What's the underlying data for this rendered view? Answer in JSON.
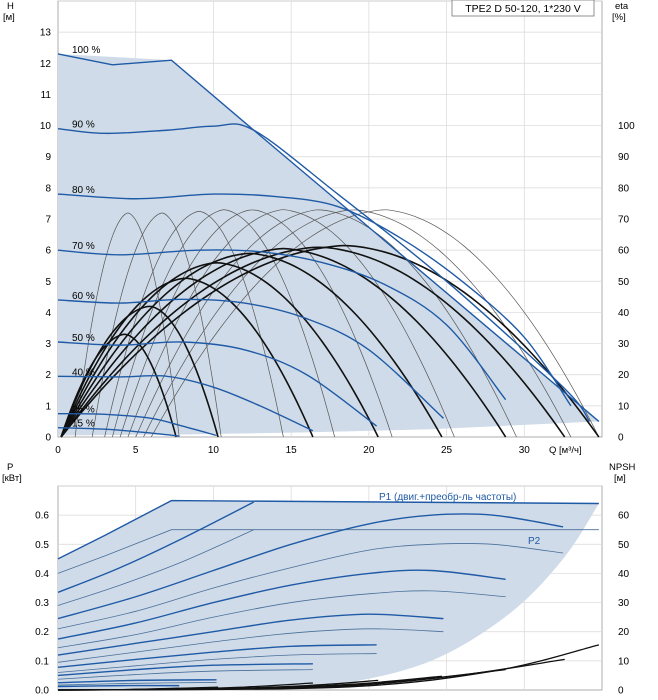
{
  "chart_data": [
    {
      "type": "line",
      "title": "TPE2 D 50-120, 1*230 V",
      "xlabel": "Q [м³/ч]",
      "ylabel": "H",
      "ylabel_unit": "[м]",
      "y2label": "eta",
      "y2label_unit": "[%]",
      "xlim": [
        0,
        35
      ],
      "ylim": [
        0,
        14
      ],
      "y2lim": [
        0,
        140
      ],
      "x_ticks": [
        0,
        5,
        10,
        15,
        20,
        25,
        30
      ],
      "y_ticks": [
        0,
        1,
        2,
        3,
        4,
        5,
        6,
        7,
        8,
        9,
        10,
        11,
        12,
        13
      ],
      "y2_ticks": [
        0,
        10,
        20,
        30,
        40,
        50,
        60,
        70,
        80,
        90,
        100
      ],
      "grid": true,
      "envelope": {
        "top": [
          [
            0,
            12.3
          ],
          [
            7.3,
            12.1
          ],
          [
            12.6,
            9.85
          ],
          [
            34.8,
            0.5
          ]
        ],
        "bottom": [
          [
            0,
            0.05
          ],
          [
            8,
            0.08
          ],
          [
            16,
            0.15
          ],
          [
            24,
            0.25
          ],
          [
            34.8,
            0.5
          ]
        ]
      },
      "head_curves": [
        {
          "label": "100 %",
          "points": [
            [
              0,
              12.3
            ],
            [
              3.5,
              11.95
            ],
            [
              7.3,
              12.1
            ],
            [
              12.6,
              9.85
            ],
            [
              34.8,
              0.5
            ]
          ]
        },
        {
          "label": "90 %",
          "points": [
            [
              0,
              9.9
            ],
            [
              3,
              9.75
            ],
            [
              7,
              9.85
            ],
            [
              10,
              9.98
            ],
            [
              12.6,
              9.85
            ],
            [
              18,
              7.8
            ],
            [
              25,
              5.0
            ],
            [
              32.5,
              1.6
            ],
            [
              34.2,
              0.5
            ]
          ]
        },
        {
          "label": "80 %",
          "points": [
            [
              0,
              7.8
            ],
            [
              5,
              7.65
            ],
            [
              10,
              7.8
            ],
            [
              14,
              7.72
            ],
            [
              18,
              7.4
            ],
            [
              22,
              6.4
            ],
            [
              26,
              5.0
            ],
            [
              30,
              3.2
            ],
            [
              33,
              1.0
            ]
          ]
        },
        {
          "label": "70 %",
          "points": [
            [
              0,
              6.0
            ],
            [
              4,
              5.85
            ],
            [
              9,
              6.0
            ],
            [
              13,
              5.95
            ],
            [
              17,
              5.6
            ],
            [
              21,
              4.9
            ],
            [
              25,
              3.6
            ],
            [
              28.8,
              1.2
            ]
          ]
        },
        {
          "label": "60 %",
          "points": [
            [
              0,
              4.4
            ],
            [
              4,
              4.3
            ],
            [
              8,
              4.42
            ],
            [
              12,
              4.3
            ],
            [
              16,
              3.8
            ],
            [
              20,
              2.8
            ],
            [
              24.8,
              0.6
            ]
          ]
        },
        {
          "label": "50 %",
          "points": [
            [
              0,
              3.05
            ],
            [
              4,
              2.95
            ],
            [
              8,
              3.05
            ],
            [
              12,
              2.8
            ],
            [
              16,
              2.0
            ],
            [
              20.5,
              0.35
            ]
          ]
        },
        {
          "label": "40 %",
          "points": [
            [
              0,
              1.95
            ],
            [
              4,
              1.93
            ],
            [
              7,
              1.95
            ],
            [
              10,
              1.6
            ],
            [
              13,
              1.0
            ],
            [
              16.4,
              0.2
            ]
          ]
        },
        {
          "label": "25 %",
          "points": [
            [
              0,
              0.75
            ],
            [
              3,
              0.73
            ],
            [
              6,
              0.6
            ],
            [
              8,
              0.35
            ],
            [
              10.2,
              0.05
            ]
          ]
        },
        {
          "label": "15 %",
          "points": [
            [
              0,
              0.3
            ],
            [
              3,
              0.25
            ],
            [
              5.5,
              0.15
            ],
            [
              7.8,
              0.03
            ]
          ]
        }
      ],
      "efficiency_curves_thin": [
        {
          "x_start": 1.1,
          "x_peak": 4.5,
          "x_end": 7.8,
          "eta_peak": 72
        },
        {
          "x_start": 2.2,
          "x_peak": 6.7,
          "x_end": 10.5,
          "eta_peak": 72
        },
        {
          "x_start": 3.0,
          "x_peak": 9.1,
          "x_end": 14.5,
          "eta_peak": 72.5
        },
        {
          "x_start": 3.5,
          "x_peak": 10.7,
          "x_end": 17.8,
          "eta_peak": 73
        },
        {
          "x_start": 4.0,
          "x_peak": 12.5,
          "x_end": 21.5,
          "eta_peak": 73
        },
        {
          "x_start": 4.5,
          "x_peak": 14.5,
          "x_end": 25.5,
          "eta_peak": 73
        },
        {
          "x_start": 5.0,
          "x_peak": 16.8,
          "x_end": 29.5,
          "eta_peak": 73
        },
        {
          "x_start": 5.5,
          "x_peak": 19.0,
          "x_end": 33.0,
          "eta_peak": 73
        },
        {
          "x_start": 6.0,
          "x_peak": 21.0,
          "x_end": 34.8,
          "eta_peak": 73
        }
      ],
      "efficiency_curves_bold": [
        {
          "x_start": 0.2,
          "x_peak": 4.3,
          "x_end": 7.6,
          "eta_peak": 33
        },
        {
          "x_start": 0.2,
          "x_peak": 5.9,
          "x_end": 10.3,
          "eta_peak": 42
        },
        {
          "x_start": 0.2,
          "x_peak": 8.2,
          "x_end": 16.4,
          "eta_peak": 51
        },
        {
          "x_start": 0.2,
          "x_peak": 10.2,
          "x_end": 20.6,
          "eta_peak": 56
        },
        {
          "x_start": 0.2,
          "x_peak": 12.3,
          "x_end": 24.7,
          "eta_peak": 59
        },
        {
          "x_start": 0.2,
          "x_peak": 14.5,
          "x_end": 28.8,
          "eta_peak": 60.5
        },
        {
          "x_start": 0.2,
          "x_peak": 16.8,
          "x_end": 32.6,
          "eta_peak": 61
        },
        {
          "x_start": 0.2,
          "x_peak": 18.5,
          "x_end": 34.8,
          "eta_peak": 61.5
        }
      ]
    },
    {
      "type": "line",
      "xlabel": "",
      "ylabel": "P",
      "ylabel_unit": "[кВт]",
      "y2label": "NPSH",
      "y2label_unit": "[м]",
      "xlim": [
        0,
        35
      ],
      "ylim": [
        0,
        0.7
      ],
      "y2lim": [
        0,
        70
      ],
      "y_ticks": [
        0.0,
        0.1,
        0.2,
        0.3,
        0.4,
        0.5,
        0.6
      ],
      "y_tick_labels": [
        "0.0",
        "0.1",
        "0.2",
        "0.3",
        "0.4",
        "0.5",
        "0.6"
      ],
      "y2_ticks": [
        0,
        10,
        20,
        30,
        40,
        50,
        60
      ],
      "grid": true,
      "annotations": [
        {
          "text": "P1 (двиг.+преобр-ль частоты)",
          "x": 22.5,
          "y": 0.66
        },
        {
          "text": "P2",
          "x": 33.0,
          "y": 0.525
        }
      ],
      "envelope": {
        "top": [
          [
            0,
            0.45
          ],
          [
            3,
            0.53
          ],
          [
            7.3,
            0.65
          ],
          [
            34.8,
            0.64
          ]
        ],
        "bottom": [
          [
            0,
            0.0
          ],
          [
            12,
            0.0
          ],
          [
            18,
            0.02
          ],
          [
            24,
            0.1
          ],
          [
            29,
            0.26
          ],
          [
            32.5,
            0.45
          ],
          [
            34.8,
            0.64
          ]
        ]
      },
      "p1_curves": [
        {
          "label": "P1",
          "points": [
            [
              0,
              0.45
            ],
            [
              3,
              0.53
            ],
            [
              7.3,
              0.65
            ],
            [
              34.8,
              0.64
            ]
          ]
        },
        {
          "points": [
            [
              0,
              0.335
            ],
            [
              4,
              0.42
            ],
            [
              8,
              0.52
            ],
            [
              12.6,
              0.645
            ]
          ]
        },
        {
          "points": [
            [
              0,
              0.245
            ],
            [
              5,
              0.32
            ],
            [
              10,
              0.41
            ],
            [
              15,
              0.5
            ],
            [
              20,
              0.57
            ],
            [
              24,
              0.6
            ],
            [
              28,
              0.6
            ],
            [
              32.5,
              0.56
            ]
          ]
        },
        {
          "points": [
            [
              0,
              0.175
            ],
            [
              5,
              0.23
            ],
            [
              10,
              0.3
            ],
            [
              15,
              0.36
            ],
            [
              20,
              0.4
            ],
            [
              24,
              0.41
            ],
            [
              28.8,
              0.38
            ]
          ]
        },
        {
          "points": [
            [
              0,
              0.12
            ],
            [
              5,
              0.16
            ],
            [
              10,
              0.2
            ],
            [
              15,
              0.24
            ],
            [
              20,
              0.26
            ],
            [
              24.8,
              0.245
            ]
          ]
        },
        {
          "points": [
            [
              0,
              0.078
            ],
            [
              5,
              0.105
            ],
            [
              10,
              0.13
            ],
            [
              15,
              0.15
            ],
            [
              20.5,
              0.155
            ]
          ]
        },
        {
          "points": [
            [
              0,
              0.05
            ],
            [
              5,
              0.07
            ],
            [
              10,
              0.085
            ],
            [
              16.4,
              0.09
            ]
          ]
        },
        {
          "points": [
            [
              0,
              0.025
            ],
            [
              5,
              0.033
            ],
            [
              10.2,
              0.035
            ]
          ]
        },
        {
          "points": [
            [
              0,
              0.012
            ],
            [
              4,
              0.015
            ],
            [
              7.8,
              0.015
            ]
          ]
        }
      ],
      "p2_curves": [
        {
          "label": "P2",
          "points": [
            [
              0,
              0.4
            ],
            [
              3,
              0.46
            ],
            [
              7.3,
              0.55
            ],
            [
              34.8,
              0.55
            ]
          ]
        },
        {
          "points": [
            [
              0,
              0.29
            ],
            [
              4,
              0.36
            ],
            [
              8,
              0.44
            ],
            [
              12.6,
              0.55
            ]
          ]
        },
        {
          "points": [
            [
              0,
              0.21
            ],
            [
              5,
              0.27
            ],
            [
              10,
              0.35
            ],
            [
              15,
              0.42
            ],
            [
              20,
              0.48
            ],
            [
              24,
              0.5
            ],
            [
              28,
              0.5
            ],
            [
              32.5,
              0.47
            ]
          ]
        },
        {
          "points": [
            [
              0,
              0.145
            ],
            [
              5,
              0.19
            ],
            [
              10,
              0.25
            ],
            [
              15,
              0.3
            ],
            [
              20,
              0.33
            ],
            [
              24,
              0.34
            ],
            [
              28.8,
              0.32
            ]
          ]
        },
        {
          "points": [
            [
              0,
              0.095
            ],
            [
              5,
              0.13
            ],
            [
              10,
              0.165
            ],
            [
              15,
              0.195
            ],
            [
              20,
              0.21
            ],
            [
              24.8,
              0.2
            ]
          ]
        },
        {
          "points": [
            [
              0,
              0.06
            ],
            [
              5,
              0.083
            ],
            [
              10,
              0.105
            ],
            [
              15,
              0.12
            ],
            [
              20.5,
              0.125
            ]
          ]
        },
        {
          "points": [
            [
              0,
              0.037
            ],
            [
              5,
              0.053
            ],
            [
              10,
              0.065
            ],
            [
              16.4,
              0.07
            ]
          ]
        },
        {
          "points": [
            [
              0,
              0.017
            ],
            [
              5,
              0.023
            ],
            [
              10.2,
              0.026
            ]
          ]
        }
      ],
      "npsh_curves": [
        {
          "points": [
            [
              0,
              0
            ],
            [
              4,
              0.1
            ],
            [
              7.8,
              0.6
            ]
          ]
        },
        {
          "points": [
            [
              0,
              0
            ],
            [
              5,
              0.2
            ],
            [
              10.3,
              1.0
            ]
          ]
        },
        {
          "points": [
            [
              0,
              0
            ],
            [
              8,
              0.3
            ],
            [
              12,
              1.0
            ],
            [
              16.4,
              2.4
            ]
          ]
        },
        {
          "points": [
            [
              0,
              0
            ],
            [
              10,
              0.4
            ],
            [
              16,
              1.5
            ],
            [
              20.6,
              3.3
            ]
          ]
        },
        {
          "points": [
            [
              0,
              0
            ],
            [
              12,
              0.5
            ],
            [
              19,
              2.0
            ],
            [
              24.7,
              4.7
            ]
          ]
        },
        {
          "points": [
            [
              0,
              0
            ],
            [
              14,
              0.6
            ],
            [
              22,
              3.0
            ],
            [
              28.8,
              7.0
            ]
          ]
        },
        {
          "points": [
            [
              0,
              0
            ],
            [
              16,
              0.8
            ],
            [
              25,
              4.5
            ],
            [
              32.6,
              10.5
            ]
          ]
        },
        {
          "points": [
            [
              0,
              0
            ],
            [
              18,
              0.9
            ],
            [
              28,
              6.5
            ],
            [
              34.8,
              15.5
            ]
          ]
        }
      ]
    }
  ]
}
